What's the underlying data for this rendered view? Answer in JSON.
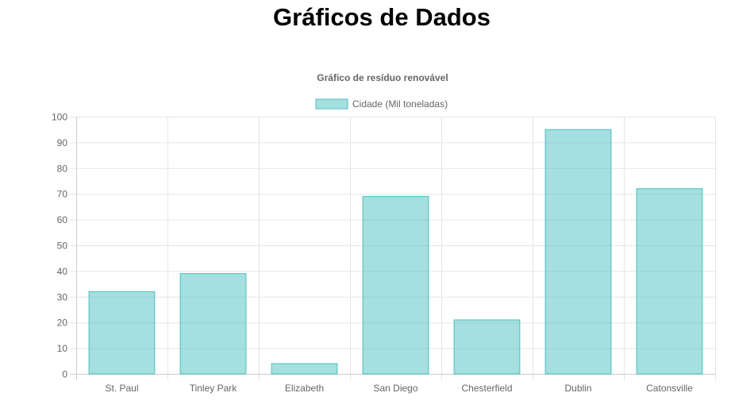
{
  "page": {
    "title": "Gráficos de Dados"
  },
  "colors": {
    "bar_fill": "rgba(75, 192, 192, 0.5)",
    "bar_stroke": "#4bc0c0",
    "grid": "#e5e5e5",
    "text": "#666666"
  },
  "chart_data": {
    "type": "bar",
    "title": "Gráfico de resíduo renovável",
    "xlabel": "",
    "ylabel": "",
    "categories": [
      "St. Paul",
      "Tinley Park",
      "Elizabeth",
      "San Diego",
      "Chesterfield",
      "Dublin",
      "Catonsville"
    ],
    "series": [
      {
        "name": "Cidade (Mil toneladas)",
        "values": [
          32,
          39,
          4,
          69,
          21,
          95,
          72
        ]
      }
    ],
    "ylim": [
      0,
      100
    ],
    "yticks": [
      "0",
      "10",
      "20",
      "30",
      "40",
      "50",
      "60",
      "70",
      "80",
      "90",
      "100"
    ],
    "grid": true,
    "legend_position": "top"
  }
}
